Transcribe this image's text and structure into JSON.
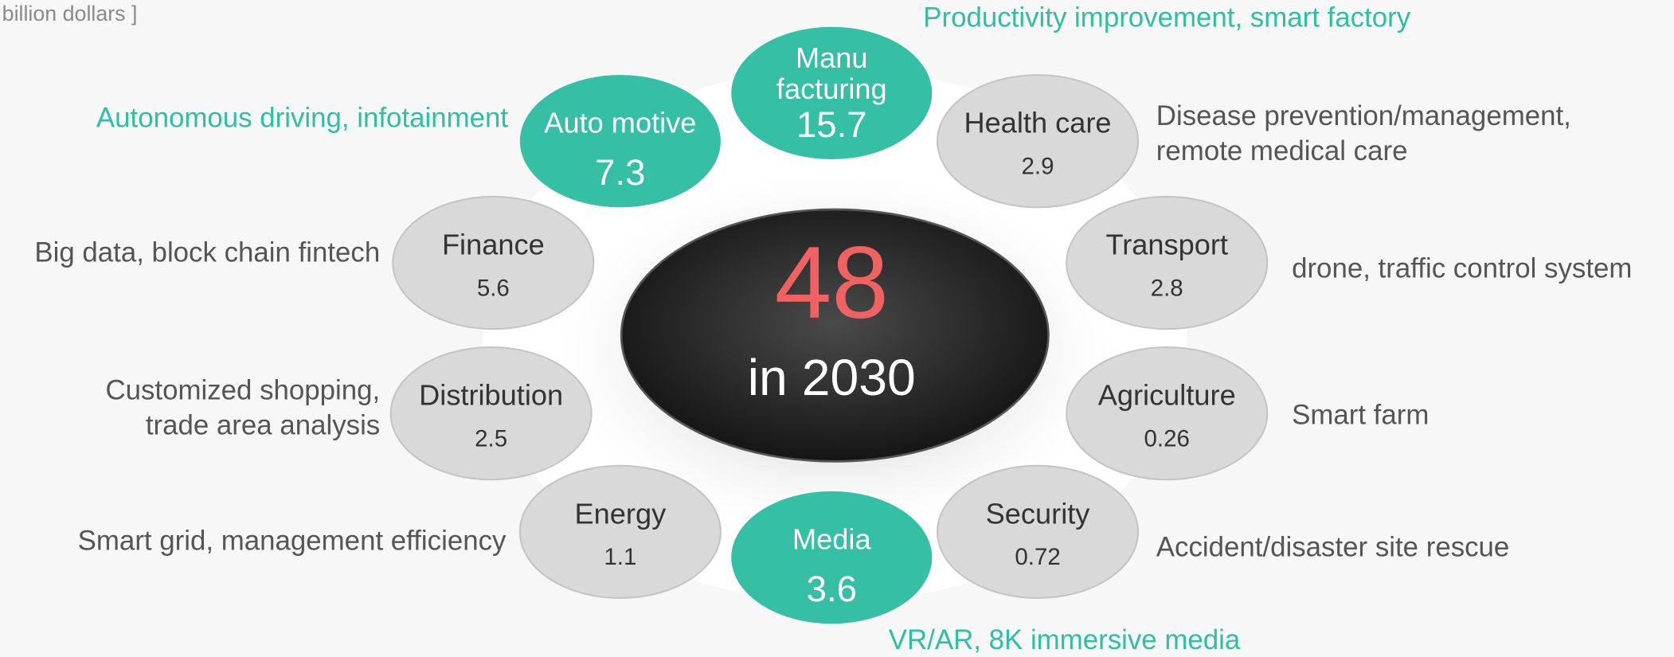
{
  "header": {
    "unit": "billion dollars ]"
  },
  "center": {
    "value": "48",
    "year": "in 2030"
  },
  "nodes": [
    {
      "label": [
        "Manu",
        "facturing"
      ],
      "value": "15.7",
      "color": "#35bfa4",
      "description": [
        "Productivity improvement, smart factory"
      ]
    },
    {
      "label": [
        "Auto motive"
      ],
      "value": "7.3",
      "color": "#35bfa4",
      "description": [
        "Autonomous driving, infotainment"
      ]
    },
    {
      "label": [
        "Health care"
      ],
      "value": "2.9",
      "color": "#d9d9d9",
      "description": [
        "Disease prevention/management,",
        "remote medical care"
      ]
    },
    {
      "label": [
        "Finance"
      ],
      "value": "5.6",
      "color": "#d9d9d9",
      "description": [
        "Big data, block chain fintech"
      ]
    },
    {
      "label": [
        "Transport"
      ],
      "value": "2.8",
      "color": "#d9d9d9",
      "description": [
        "drone, traffic control system"
      ]
    },
    {
      "label": [
        "Distribution"
      ],
      "value": "2.5",
      "color": "#d9d9d9",
      "description": [
        "Customized shopping,",
        "trade area analysis"
      ]
    },
    {
      "label": [
        "Agriculture"
      ],
      "value": "0.26",
      "color": "#d9d9d9",
      "description": [
        "Smart farm"
      ]
    },
    {
      "label": [
        "Energy"
      ],
      "value": "1.1",
      "color": "#d9d9d9",
      "description": [
        "Smart grid, management efficiency"
      ]
    },
    {
      "label": [
        "Security"
      ],
      "value": "0.72",
      "color": "#d9d9d9",
      "description": [
        "Accident/disaster site rescue"
      ]
    },
    {
      "label": [
        "Media"
      ],
      "value": "3.6",
      "color": "#35bfa4",
      "description": [
        "VR/AR, 8K immersive media"
      ]
    }
  ]
}
